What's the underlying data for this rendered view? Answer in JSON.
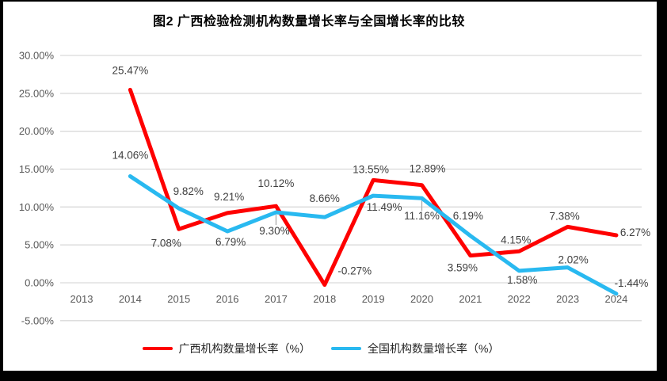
{
  "title": "图2 广西检验检测机构数量增长率与全国增长率的比较",
  "chart_data": {
    "type": "line",
    "categories": [
      "2013",
      "2014",
      "2015",
      "2016",
      "2017",
      "2018",
      "2019",
      "2020",
      "2021",
      "2022",
      "2023",
      "2024"
    ],
    "series": [
      {
        "name": "广西机构数量增长率（%）",
        "color": "#FE0000",
        "values": [
          null,
          25.47,
          7.08,
          9.21,
          10.12,
          -0.27,
          13.55,
          12.89,
          3.59,
          4.15,
          7.38,
          6.27
        ],
        "labels": [
          "",
          "25.47%",
          "7.08%",
          "9.21%",
          "10.12%",
          "-0.27%",
          "13.55%",
          "12.89%",
          "3.59%",
          "4.15%",
          "7.38%",
          "6.27%"
        ]
      },
      {
        "name": "全国机构数量增长率（%）",
        "color": "#29B9F0",
        "values": [
          null,
          14.06,
          9.82,
          6.79,
          9.3,
          8.66,
          11.49,
          11.16,
          6.19,
          1.58,
          2.02,
          -1.44
        ],
        "labels": [
          "",
          "14.06%",
          "9.82%",
          "6.79%",
          "9.30%",
          "8.66%",
          "11.49%",
          "11.16%",
          "6.19%",
          "1.58%",
          "2.02%",
          "-1.44%"
        ]
      }
    ],
    "title": "图2 广西检验检测机构数量增长率与全国增长率的比较",
    "xlabel": "",
    "ylabel": "",
    "ylim": [
      -5,
      30
    ],
    "ytick_step": 5,
    "yticks": [
      {
        "v": 30,
        "label": "30.00%"
      },
      {
        "v": 25,
        "label": "25.00%"
      },
      {
        "v": 20,
        "label": "20.00%"
      },
      {
        "v": 15,
        "label": "15.00%"
      },
      {
        "v": 10,
        "label": "10.00%"
      },
      {
        "v": 5,
        "label": "5.00%"
      },
      {
        "v": 0,
        "label": "0.00%"
      },
      {
        "v": -5,
        "label": "-5.00%"
      }
    ],
    "grid": true,
    "legend_position": "bottom"
  },
  "colors": {
    "guangxi_line": "#FE0000",
    "national_line": "#29B9F0",
    "grid": "#D9D9D9",
    "axis_text": "#595959",
    "data_label": "#3F3F3F",
    "leader_line": "#A6A6A6",
    "frame": "#000000"
  }
}
